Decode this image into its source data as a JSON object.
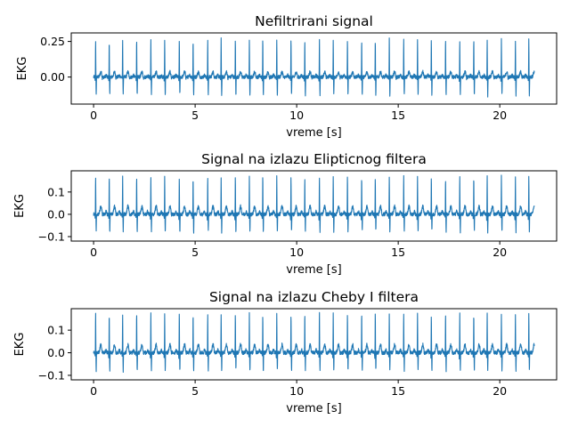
{
  "chart_data": [
    {
      "type": "line",
      "title": "Nefiltrirani signal",
      "xlabel": "vreme [s]",
      "ylabel": "EKG",
      "xlim": [
        -1.1,
        22.8
      ],
      "ylim": [
        -0.19,
        0.31
      ],
      "xticks": [
        0,
        5,
        10,
        15,
        20
      ],
      "xtick_labels": [
        "0",
        "5",
        "10",
        "15",
        "20"
      ],
      "yticks": [
        0.25,
        0
      ],
      "ytick_labels": [
        "0.25",
        "0.00"
      ],
      "grid": false,
      "series": [
        {
          "color": "#1f77b4",
          "x_range": [
            0,
            21.7
          ],
          "beat_times": [
            0.1,
            0.77,
            1.43,
            2.12,
            2.82,
            3.5,
            4.22,
            4.9,
            5.62,
            6.28,
            6.98,
            7.67,
            8.33,
            9.02,
            9.72,
            10.4,
            11.12,
            11.8,
            12.5,
            13.2,
            13.87,
            14.56,
            15.27,
            15.95,
            16.63,
            17.33,
            18.03,
            18.72,
            19.38,
            20.08,
            20.77,
            21.43
          ],
          "r_peak": 0.27,
          "s_trough": -0.13,
          "baseline": 0.0,
          "min": -0.17
        }
      ]
    },
    {
      "type": "line",
      "title": "Signal na izlazu Elipticnog filtera",
      "xlabel": "vreme [s]",
      "ylabel": "EKG",
      "xlim": [
        -1.1,
        22.8
      ],
      "ylim": [
        -0.12,
        0.195
      ],
      "xticks": [
        0,
        5,
        10,
        15,
        20
      ],
      "xtick_labels": [
        "0",
        "5",
        "10",
        "15",
        "20"
      ],
      "yticks": [
        0.1,
        0,
        -0.1
      ],
      "ytick_labels": [
        "0.1",
        "0.0",
        "−0.1"
      ],
      "grid": false,
      "series": [
        {
          "color": "#1f77b4",
          "x_range": [
            0,
            21.7
          ],
          "beat_times": [
            0.1,
            0.77,
            1.43,
            2.12,
            2.82,
            3.5,
            4.22,
            4.9,
            5.62,
            6.28,
            6.98,
            7.67,
            8.33,
            9.02,
            9.72,
            10.4,
            11.12,
            11.8,
            12.5,
            13.2,
            13.87,
            14.56,
            15.27,
            15.95,
            16.63,
            17.33,
            18.03,
            18.72,
            19.38,
            20.08,
            20.77,
            21.43
          ],
          "r_peak": 0.175,
          "s_trough": -0.08,
          "baseline": 0.0,
          "min": -0.1
        }
      ]
    },
    {
      "type": "line",
      "title": "Signal na izlazu Cheby I filtera",
      "xlabel": "vreme [s]",
      "ylabel": "EKG",
      "xlim": [
        -1.1,
        22.8
      ],
      "ylim": [
        -0.12,
        0.195
      ],
      "xticks": [
        0,
        5,
        10,
        15,
        20
      ],
      "xtick_labels": [
        "0",
        "5",
        "10",
        "15",
        "20"
      ],
      "yticks": [
        0.1,
        0,
        -0.1
      ],
      "ytick_labels": [
        "0.1",
        "0.0",
        "−0.1"
      ],
      "grid": false,
      "series": [
        {
          "color": "#1f77b4",
          "x_range": [
            0,
            21.7
          ],
          "beat_times": [
            0.1,
            0.77,
            1.43,
            2.12,
            2.82,
            3.5,
            4.22,
            4.9,
            5.62,
            6.28,
            6.98,
            7.67,
            8.33,
            9.02,
            9.72,
            10.4,
            11.12,
            11.8,
            12.5,
            13.2,
            13.87,
            14.56,
            15.27,
            15.95,
            16.63,
            17.33,
            18.03,
            18.72,
            19.38,
            20.08,
            20.77,
            21.43
          ],
          "r_peak": 0.18,
          "s_trough": -0.08,
          "baseline": 0.0,
          "min": -0.1
        }
      ]
    }
  ]
}
